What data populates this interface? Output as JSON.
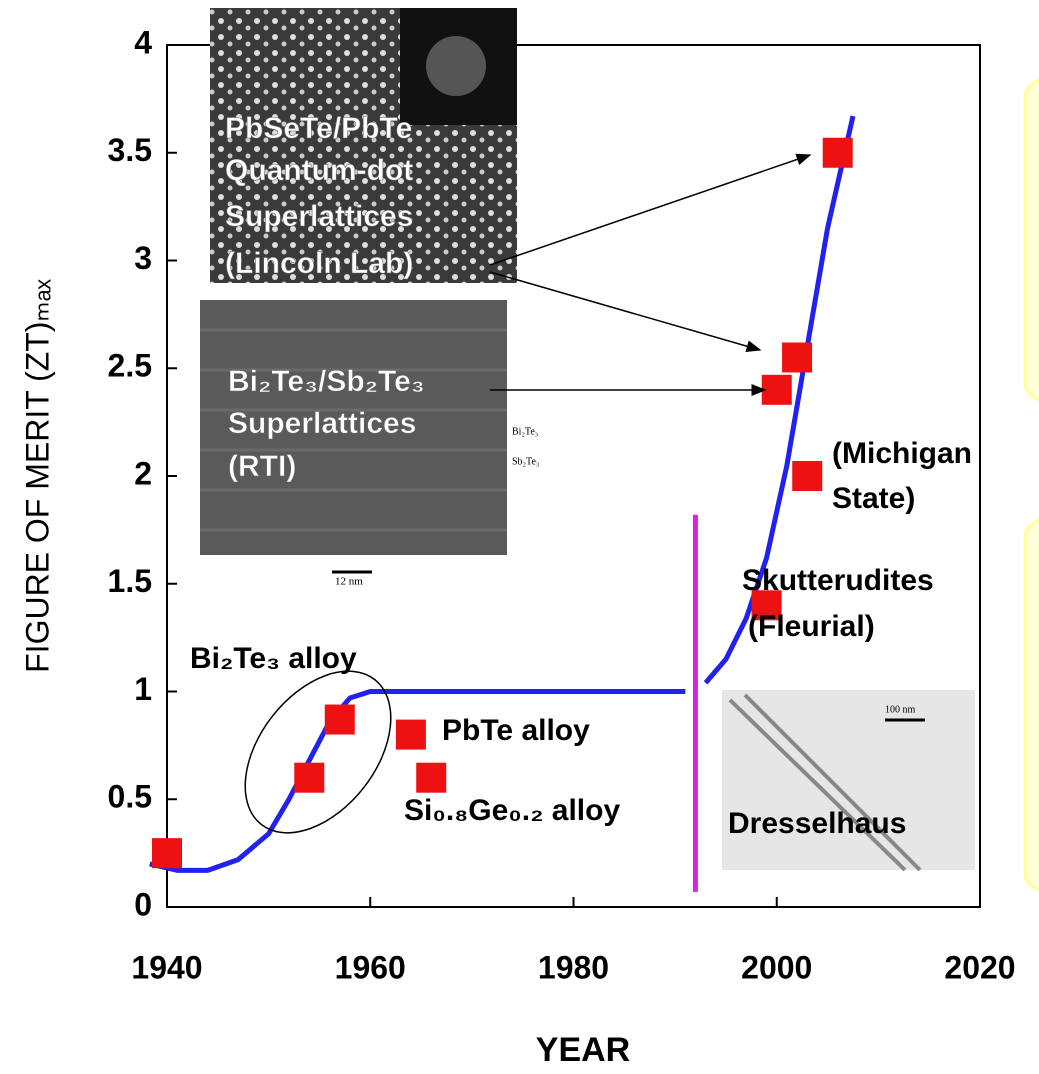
{
  "chart_data": {
    "type": "scatter",
    "xlabel": "YEAR",
    "ylabel": "FIGURE OF MERIT (ZT)ₘₐₓ",
    "xlim": [
      1940,
      2020
    ],
    "xticks": [
      1940,
      1960,
      1980,
      2000,
      2020
    ],
    "ylim": [
      0,
      4
    ],
    "yticks": [
      0,
      0.5,
      1,
      1.5,
      2,
      2.5,
      3,
      3.5,
      4
    ],
    "points": {
      "color": "#ee1111",
      "x": [
        1940,
        1954,
        1957,
        1964,
        1966,
        1999,
        2000,
        2002,
        2003,
        2006
      ],
      "y": [
        0.25,
        0.6,
        0.87,
        0.8,
        0.6,
        1.4,
        2.4,
        2.55,
        2.0,
        3.5
      ]
    },
    "curves": [
      {
        "color": "#2222ee",
        "x": [
          1938.3,
          1941,
          1944,
          1947,
          1950,
          1952,
          1954,
          1956,
          1958,
          1960,
          1991
        ],
        "y": [
          0.2,
          0.17,
          0.17,
          0.22,
          0.34,
          0.5,
          0.68,
          0.86,
          0.97,
          1.0,
          1.0
        ]
      },
      {
        "color": "#2222ee",
        "x": [
          1993,
          1995,
          1997,
          1999,
          2001,
          2003,
          2005,
          2007.5
        ],
        "y": [
          1.04,
          1.15,
          1.34,
          1.62,
          2.05,
          2.6,
          3.15,
          3.67
        ]
      }
    ],
    "divider": {
      "color": "#e020e0",
      "x": 1992,
      "y": [
        0.07,
        1.82
      ]
    },
    "annotations": [
      "PbSeTe/PbTe",
      "Quantum-dot",
      "Superlattices",
      "(Lincoln Lab)",
      "Bi₂Te₃/Sb₂Te₃",
      "Superlattices",
      "(RTI)",
      "(Michigan",
      "State)",
      "Skutterudites",
      "(Fleurial)",
      "Bi₂Te₃ alloy",
      "PbTe alloy",
      "Si₀.₈Ge₀.₂ alloy",
      "Dresselhaus"
    ],
    "image_labels": [
      "12 nm",
      "Bi₂Te₃",
      "Sb₂Te₃",
      "100 nm"
    ]
  }
}
